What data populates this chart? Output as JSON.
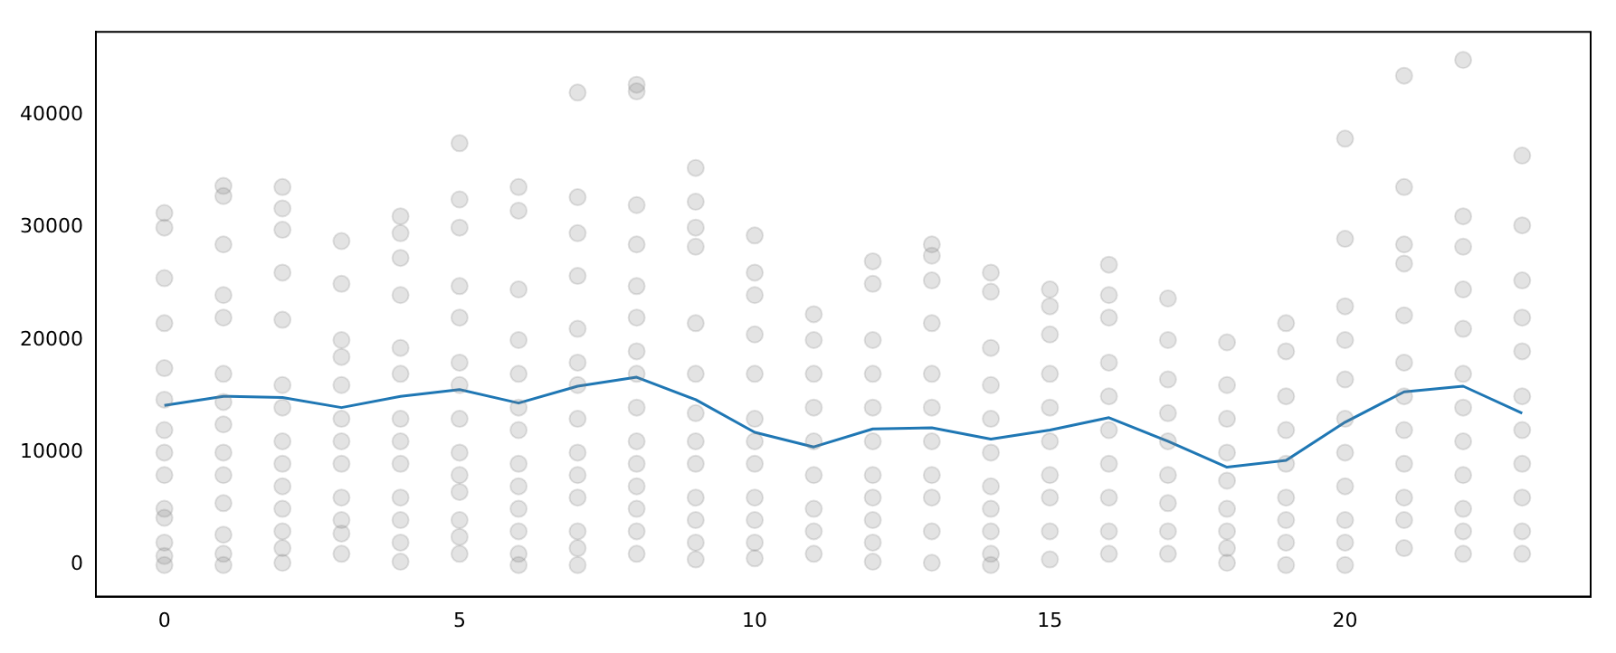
{
  "chart_data": {
    "type": "scatter",
    "xlim": [
      -1.16,
      24.16
    ],
    "xticks": [
      0,
      5,
      10,
      15,
      20
    ],
    "ylim": [
      -2800,
      47400
    ],
    "yticks": [
      0,
      10000,
      20000,
      30000,
      40000
    ],
    "grid": false,
    "legend": false,
    "series": [
      {
        "color": "#808080",
        "marker": "circle",
        "x": [
          0,
          0,
          0,
          0,
          0,
          0,
          0,
          0,
          0,
          0,
          0,
          0,
          0,
          0,
          1,
          1,
          1,
          1,
          1,
          1,
          1,
          1,
          1,
          1,
          1,
          1,
          1,
          1,
          2,
          2,
          2,
          2,
          2,
          2,
          2,
          2,
          2,
          2,
          2,
          2,
          2,
          2,
          3,
          3,
          3,
          3,
          3,
          3,
          3,
          3,
          3,
          3,
          3,
          3,
          4,
          4,
          4,
          4,
          4,
          4,
          4,
          4,
          4,
          4,
          4,
          4,
          4,
          5,
          5,
          5,
          5,
          5,
          5,
          5,
          5,
          5,
          5,
          5,
          5,
          5,
          5,
          6,
          6,
          6,
          6,
          6,
          6,
          6,
          6,
          6,
          6,
          6,
          6,
          6,
          7,
          7,
          7,
          7,
          7,
          7,
          7,
          7,
          7,
          7,
          7,
          7,
          7,
          7,
          8,
          8,
          8,
          8,
          8,
          8,
          8,
          8,
          8,
          8,
          8,
          8,
          8,
          8,
          8,
          9,
          9,
          9,
          9,
          9,
          9,
          9,
          9,
          9,
          9,
          9,
          9,
          9,
          10,
          10,
          10,
          10,
          10,
          10,
          10,
          10,
          10,
          10,
          10,
          10,
          11,
          11,
          11,
          11,
          11,
          11,
          11,
          11,
          11,
          12,
          12,
          12,
          12,
          12,
          12,
          12,
          12,
          12,
          12,
          12,
          13,
          13,
          13,
          13,
          13,
          13,
          13,
          13,
          13,
          13,
          13,
          14,
          14,
          14,
          14,
          14,
          14,
          14,
          14,
          14,
          14,
          14,
          15,
          15,
          15,
          15,
          15,
          15,
          15,
          15,
          15,
          15,
          16,
          16,
          16,
          16,
          16,
          16,
          16,
          16,
          16,
          16,
          17,
          17,
          17,
          17,
          17,
          17,
          17,
          17,
          17,
          18,
          18,
          18,
          18,
          18,
          18,
          18,
          18,
          18,
          19,
          19,
          19,
          19,
          19,
          19,
          19,
          19,
          19,
          20,
          20,
          20,
          20,
          20,
          20,
          20,
          20,
          20,
          20,
          20,
          21,
          21,
          21,
          21,
          21,
          21,
          21,
          21,
          21,
          21,
          21,
          21,
          22,
          22,
          22,
          22,
          22,
          22,
          22,
          22,
          22,
          22,
          22,
          22,
          23,
          23,
          23,
          23,
          23,
          23,
          23,
          23,
          23,
          23,
          23
        ],
        "values": [
          31300,
          30000,
          25500,
          21500,
          17500,
          14700,
          12000,
          10000,
          8000,
          5000,
          4200,
          2000,
          800,
          0,
          33700,
          32800,
          28500,
          24000,
          22000,
          17000,
          14500,
          12500,
          10000,
          8000,
          5500,
          2700,
          1000,
          0,
          33600,
          31700,
          29800,
          26000,
          21800,
          16000,
          14000,
          11000,
          9000,
          7000,
          5000,
          3000,
          1500,
          200,
          28800,
          25000,
          20000,
          18500,
          16000,
          13000,
          11000,
          9000,
          6000,
          4000,
          2800,
          1000,
          31000,
          29500,
          27300,
          24000,
          19300,
          17000,
          13000,
          11000,
          9000,
          6000,
          4000,
          2000,
          300,
          37500,
          32500,
          30000,
          24800,
          22000,
          18000,
          16000,
          13000,
          10000,
          8000,
          6500,
          4000,
          2500,
          1000,
          33600,
          31500,
          24500,
          20000,
          17000,
          14000,
          12000,
          9000,
          7000,
          5000,
          3000,
          1000,
          0,
          42000,
          32700,
          29500,
          25700,
          21000,
          18000,
          16000,
          13000,
          10000,
          8000,
          6000,
          3000,
          1500,
          0,
          42700,
          42100,
          32000,
          28500,
          24800,
          22000,
          19000,
          17000,
          14000,
          11000,
          9000,
          7000,
          5000,
          3000,
          1000,
          35300,
          32300,
          30000,
          28300,
          21500,
          17000,
          13500,
          11000,
          9000,
          6000,
          4000,
          2000,
          500,
          29300,
          26000,
          24000,
          20500,
          17000,
          13000,
          11000,
          9000,
          6000,
          4000,
          2000,
          600,
          22300,
          20000,
          17000,
          14000,
          11000,
          8000,
          5000,
          3000,
          1000,
          27000,
          25000,
          20000,
          17000,
          14000,
          11000,
          8000,
          6000,
          4000,
          2000,
          300,
          28500,
          27500,
          25300,
          21500,
          17000,
          14000,
          11000,
          8000,
          6000,
          3000,
          200,
          26000,
          24300,
          19300,
          16000,
          13000,
          10000,
          7000,
          5000,
          3000,
          1000,
          0,
          24500,
          23000,
          20500,
          17000,
          14000,
          11000,
          8000,
          6000,
          3000,
          500,
          26700,
          24000,
          22000,
          18000,
          15000,
          12000,
          9000,
          6000,
          3000,
          1000,
          23700,
          20000,
          16500,
          13500,
          11000,
          8000,
          5500,
          3000,
          1000,
          19800,
          16000,
          13000,
          10000,
          7500,
          5000,
          3000,
          1500,
          200,
          21500,
          19000,
          15000,
          12000,
          9000,
          6000,
          4000,
          2000,
          0,
          37900,
          29000,
          23000,
          20000,
          16500,
          13000,
          10000,
          7000,
          4000,
          2000,
          0,
          43500,
          33600,
          28500,
          26800,
          22200,
          18000,
          15000,
          12000,
          9000,
          6000,
          4000,
          1500,
          44900,
          31000,
          28300,
          24500,
          21000,
          17000,
          14000,
          11000,
          8000,
          5000,
          3000,
          1000,
          36400,
          30200,
          25300,
          22000,
          19000,
          15000,
          12000,
          9000,
          6000,
          3000,
          1000
        ]
      },
      {
        "type": "line",
        "color": "#1f77b4",
        "marker": "none",
        "line_style": "solid",
        "x": [
          0,
          1,
          2,
          3,
          4,
          5,
          6,
          7,
          8,
          9,
          10,
          11,
          12,
          13,
          14,
          15,
          16,
          17,
          18,
          19,
          20,
          21,
          22,
          23
        ],
        "values": [
          14200,
          15000,
          14900,
          14000,
          15000,
          15600,
          14400,
          15900,
          16700,
          14700,
          11800,
          10500,
          12100,
          12200,
          11200,
          12000,
          13100,
          11000,
          8700,
          9300,
          12700,
          15400,
          15900,
          13500
        ]
      }
    ]
  }
}
